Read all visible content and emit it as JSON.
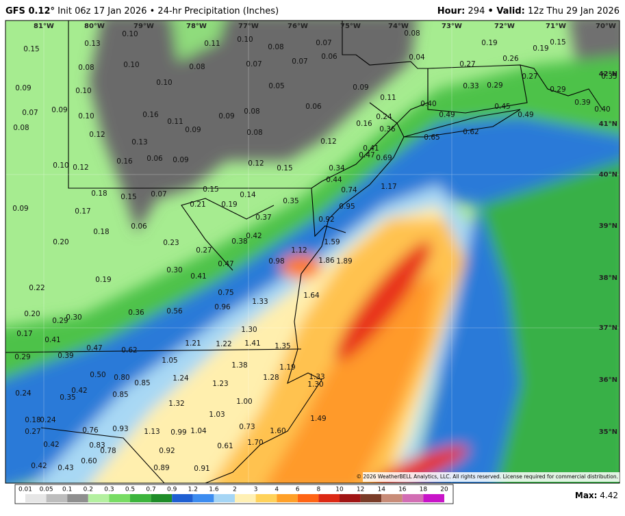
{
  "header": {
    "title": "GFS 0.12°",
    "subtitle": "Init 06z 17 Jan 2026 • 24-hr Precipitation (Inches)",
    "hour_label": "Hour:",
    "hour": "294",
    "valid_label": "• Valid:",
    "valid": "12z Thu 29 Jan 2026"
  },
  "longitudes": [
    "81°W",
    "80°W",
    "79°W",
    "78°W",
    "77°W",
    "76°W",
    "75°W",
    "74°W",
    "73°W",
    "72°W",
    "71°W",
    "70°W"
  ],
  "latitudes": [
    "42°N",
    "41°N",
    "40°N",
    "39°N",
    "38°N",
    "37°N",
    "36°N",
    "35°N"
  ],
  "point_labels": [
    "0.10",
    "0.13",
    "0.15",
    "0.11",
    "0.10",
    "0.08",
    "0.07",
    "0.08",
    "0.19",
    "0.19",
    "0.15",
    "0.08",
    "0.10",
    "0.08",
    "0.07",
    "0.07",
    "0.06",
    "0.04",
    "0.27",
    "0.26",
    "0.09",
    "0.10",
    "0.10",
    "0.05",
    "0.09",
    "0.11",
    "0.33",
    "0.29",
    "0.27",
    "0.29",
    "0.07",
    "0.09",
    "0.10",
    "0.16",
    "0.11",
    "0.09",
    "0.08",
    "0.06",
    "0.40",
    "0.49",
    "0.45",
    "0.49",
    "0.08",
    "0.12",
    "0.09",
    "0.08",
    "0.16",
    "0.24",
    "0.36",
    "0.62",
    "0.13",
    "0.12",
    "0.65",
    "0.41",
    "0.47",
    "0.69",
    "0.10",
    "0.12",
    "0.16",
    "0.06",
    "0.09",
    "0.12",
    "0.15",
    "0.34",
    "0.44",
    "1.17",
    "0.18",
    "0.15",
    "0.07",
    "0.15",
    "0.14",
    "0.74",
    "0.09",
    "0.17",
    "0.21",
    "0.19",
    "0.35",
    "0.95",
    "0.37",
    "0.92",
    "0.06",
    "0.18",
    "0.42",
    "0.38",
    "1.59",
    "0.20",
    "0.23",
    "0.27",
    "1.12",
    "0.47",
    "0.98",
    "1.86",
    "1.89",
    "0.30",
    "0.41",
    "0.19",
    "0.22",
    "0.75",
    "1.64",
    "1.33",
    "0.36",
    "0.56",
    "0.96",
    "0.20",
    "0.30",
    "0.29",
    "1.30",
    "0.17",
    "0.41",
    "0.47",
    "0.62",
    "1.21",
    "1.22",
    "1.41",
    "1.35",
    "0.29",
    "0.39",
    "1.05",
    "1.38",
    "1.19",
    "0.50",
    "0.80",
    "0.85",
    "1.24",
    "1.23",
    "1.28",
    "1.33",
    "1.30",
    "0.42",
    "0.24",
    "0.85",
    "0.35",
    "1.32",
    "1.00",
    "1.03",
    "0.18",
    "0.24",
    "1.49",
    "0.76",
    "0.93",
    "1.13",
    "0.99",
    "1.04",
    "0.73",
    "1.60",
    "0.27",
    "0.42",
    "0.83",
    "0.78",
    "0.92",
    "0.61",
    "1.70",
    "0.42",
    "0.43",
    "0.60",
    "0.89",
    "0.91",
    "0.35",
    "0.40",
    "0.39"
  ],
  "colorbar": {
    "levels": [
      0.01,
      0.05,
      0.1,
      0.2,
      0.3,
      0.5,
      0.7,
      0.9,
      1.2,
      1.6,
      2,
      3,
      4,
      6,
      8,
      10,
      12,
      14,
      16,
      18,
      20
    ],
    "colors": [
      "#e6e6e6",
      "#bdbdbd",
      "#8f8f8f",
      "#b4f0a0",
      "#78dc64",
      "#3cb43c",
      "#1e8c28",
      "#1e5fd2",
      "#3c8cf0",
      "#a5d5f5",
      "#fff0b4",
      "#ffd25a",
      "#ffa028",
      "#ff6414",
      "#dc2814",
      "#a01414",
      "#7a3c28",
      "#c88c78",
      "#d26eb4",
      "#c814c8"
    ]
  },
  "max_label": "Max:",
  "max_value": "4.42",
  "copyright": "© 2026 WeatherBELL Analytics, LLC. All rights reserved. License required for commercial distribution."
}
